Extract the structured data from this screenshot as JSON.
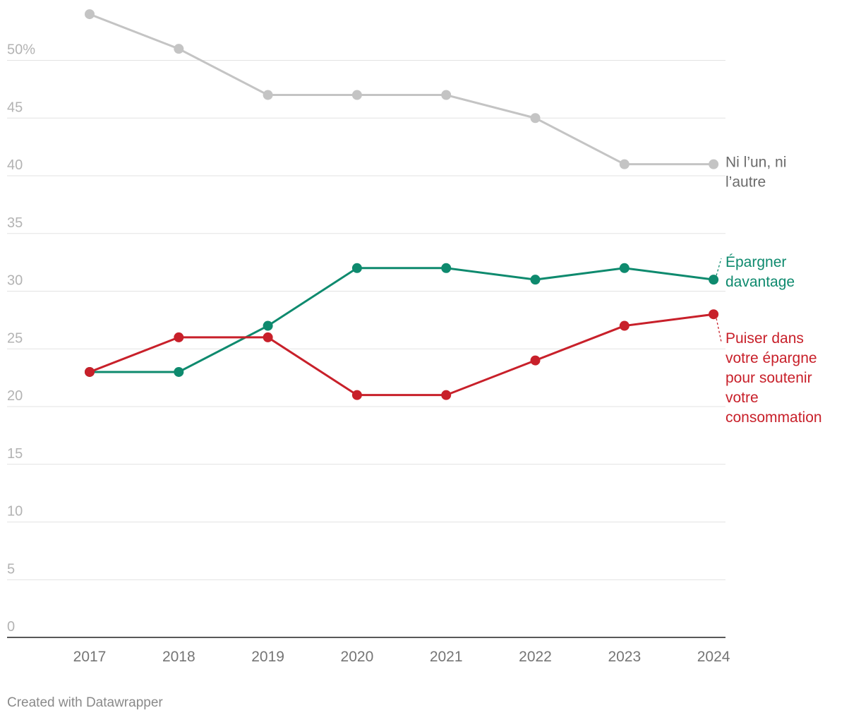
{
  "chart_data": {
    "type": "line",
    "x": [
      "2017",
      "2018",
      "2019",
      "2020",
      "2021",
      "2022",
      "2023",
      "2024"
    ],
    "y_ticks": [
      "0",
      "5",
      "10",
      "15",
      "20",
      "25",
      "30",
      "35",
      "40",
      "45",
      "50%"
    ],
    "y_tick_values": [
      0,
      5,
      10,
      15,
      20,
      25,
      30,
      35,
      40,
      45,
      50
    ],
    "ylim": [
      0,
      55
    ],
    "grid": true,
    "series": [
      {
        "name": "Ni l’un, ni l’autre",
        "label_lines": [
          "Ni l’un, ni",
          "l’autre"
        ],
        "color": "#c4c4c4",
        "values": [
          54,
          51,
          47,
          47,
          47,
          45,
          41,
          41
        ]
      },
      {
        "name": "Épargner davantage",
        "label_lines": [
          "Épargner",
          "davantage"
        ],
        "color": "#0e8a6e",
        "values": [
          23,
          23,
          27,
          32,
          32,
          31,
          32,
          31
        ]
      },
      {
        "name": "Puiser dans votre épargne pour soutenir votre consommation",
        "label_lines": [
          "Puiser dans",
          "votre épargne",
          "pour soutenir",
          "votre",
          "consommation"
        ],
        "color": "#c8202a",
        "values": [
          23,
          26,
          26,
          21,
          21,
          24,
          27,
          28
        ]
      }
    ]
  },
  "footer": "Created with Datawrapper"
}
